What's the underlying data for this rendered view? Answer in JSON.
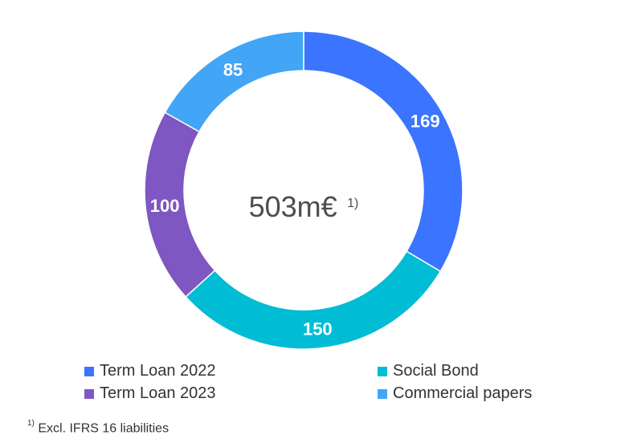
{
  "chart_data": {
    "type": "pie",
    "donut": true,
    "center_text": "503m€",
    "center_footnote_ref": "1)",
    "slices": [
      {
        "name": "Term Loan 2022",
        "value": 169,
        "color": "#3b74ff"
      },
      {
        "name": "Social Bond",
        "value": 150,
        "color": "#00bcd4"
      },
      {
        "name": "Term Loan 2023",
        "value": 100,
        "color": "#7e57c2"
      },
      {
        "name": "Commercial papers",
        "value": 85,
        "color": "#42a5f5"
      }
    ],
    "legend_placement": "bottom"
  },
  "footnote": {
    "ref": "1)",
    "text": "Excl. IFRS 16 liabilities"
  }
}
